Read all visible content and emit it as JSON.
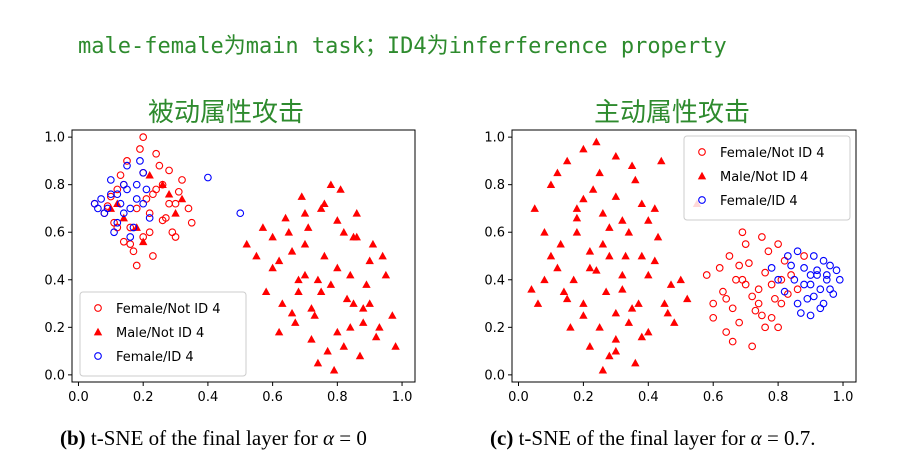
{
  "header": {
    "title": "male-female为main task；ID4为inferference property"
  },
  "panels": [
    {
      "subtitle": "被动属性攻击",
      "caption_prefix": "(b)",
      "caption_text": " t-SNE of the final layer for ",
      "caption_symbol": "α",
      "caption_value": " = 0"
    },
    {
      "subtitle": "主动属性攻击",
      "caption_prefix": "(c)",
      "caption_text": " t-SNE of the final layer for ",
      "caption_symbol": "α",
      "caption_value": " = 0.7."
    }
  ],
  "chart_data": [
    {
      "type": "scatter",
      "xlim": [
        -0.02,
        1.04
      ],
      "ylim": [
        -0.03,
        1.03
      ],
      "x_ticks": [
        "0.0",
        "0.2",
        "0.4",
        "0.6",
        "0.8",
        "1.0"
      ],
      "y_ticks": [
        "0.0",
        "0.2",
        "0.4",
        "0.6",
        "0.8",
        "1.0"
      ],
      "legend_position": "bottom-left",
      "series": [
        {
          "name": "Female/Not ID 4",
          "marker": "circle-open",
          "color": "#ff0000",
          "x": [
            0.05,
            0.08,
            0.1,
            0.12,
            0.14,
            0.16,
            0.18,
            0.2,
            0.22,
            0.24,
            0.26,
            0.28,
            0.3,
            0.32,
            0.34,
            0.15,
            0.19,
            0.23,
            0.27,
            0.21,
            0.25,
            0.17,
            0.13,
            0.29,
            0.11,
            0.31,
            0.09,
            0.2,
            0.24,
            0.18,
            0.22,
            0.26,
            0.16,
            0.28,
            0.14,
            0.3,
            0.12,
            0.35,
            0.2,
            0.23
          ],
          "y": [
            0.72,
            0.68,
            0.75,
            0.62,
            0.8,
            0.55,
            0.7,
            0.85,
            0.6,
            0.78,
            0.65,
            0.72,
            0.58,
            0.82,
            0.7,
            0.9,
            0.95,
            0.5,
            0.66,
            0.74,
            0.88,
            0.52,
            0.84,
            0.6,
            0.64,
            0.77,
            0.71,
            1.0,
            0.93,
            0.46,
            0.68,
            0.8,
            0.62,
            0.86,
            0.56,
            0.72,
            0.78,
            0.64,
            0.58,
            0.76
          ]
        },
        {
          "name": "Male/Not ID 4",
          "marker": "triangle-filled",
          "color": "#ff0000",
          "x": [
            0.55,
            0.6,
            0.65,
            0.7,
            0.75,
            0.8,
            0.85,
            0.9,
            0.95,
            0.58,
            0.63,
            0.68,
            0.73,
            0.78,
            0.83,
            0.88,
            0.93,
            0.62,
            0.67,
            0.72,
            0.77,
            0.82,
            0.87,
            0.92,
            0.97,
            0.66,
            0.71,
            0.76,
            0.81,
            0.86,
            0.91,
            0.7,
            0.75,
            0.8,
            0.85,
            0.74,
            0.79,
            0.84,
            0.64,
            0.69,
            0.89,
            0.94,
            0.6,
            0.52,
            0.57,
            0.78,
            0.72,
            0.82,
            0.68,
            0.88,
            0.98,
            0.62,
            0.76,
            0.84,
            0.9,
            0.7,
            0.8,
            0.66,
            0.74,
            0.86,
            0.1,
            0.18,
            0.26,
            0.32,
            0.14,
            0.22,
            0.3,
            0.2,
            0.28,
            0.12
          ],
          "y": [
            0.5,
            0.45,
            0.6,
            0.55,
            0.7,
            0.65,
            0.58,
            0.48,
            0.42,
            0.35,
            0.3,
            0.4,
            0.25,
            0.38,
            0.32,
            0.28,
            0.2,
            0.18,
            0.22,
            0.15,
            0.1,
            0.12,
            0.08,
            0.16,
            0.25,
            0.52,
            0.62,
            0.72,
            0.78,
            0.68,
            0.55,
            0.42,
            0.35,
            0.45,
            0.3,
            0.05,
            0.02,
            0.2,
            0.66,
            0.75,
            0.38,
            0.5,
            0.58,
            0.55,
            0.62,
            0.8,
            0.28,
            0.6,
            0.35,
            0.22,
            0.12,
            0.48,
            0.5,
            0.42,
            0.3,
            0.68,
            0.18,
            0.26,
            0.4,
            0.58,
            0.7,
            0.62,
            0.8,
            0.74,
            0.66,
            0.84,
            0.68,
            0.56,
            0.76,
            0.72
          ]
        },
        {
          "name": "Female/ID 4",
          "marker": "circle-open",
          "color": "#0000ff",
          "x": [
            0.05,
            0.08,
            0.1,
            0.12,
            0.14,
            0.16,
            0.18,
            0.2,
            0.22,
            0.11,
            0.13,
            0.15,
            0.09,
            0.17,
            0.19,
            0.07,
            0.1,
            0.14,
            0.16,
            0.12,
            0.2,
            0.18,
            0.06,
            0.21,
            0.15,
            0.4,
            0.5
          ],
          "y": [
            0.72,
            0.68,
            0.76,
            0.64,
            0.8,
            0.7,
            0.74,
            0.85,
            0.66,
            0.6,
            0.72,
            0.78,
            0.7,
            0.62,
            0.9,
            0.74,
            0.82,
            0.68,
            0.58,
            0.76,
            0.72,
            0.8,
            0.7,
            0.78,
            0.88,
            0.83,
            0.68
          ]
        }
      ]
    },
    {
      "type": "scatter",
      "xlim": [
        -0.02,
        1.04
      ],
      "ylim": [
        -0.03,
        1.03
      ],
      "x_ticks": [
        "0.0",
        "0.2",
        "0.4",
        "0.6",
        "0.8",
        "1.0"
      ],
      "y_ticks": [
        "0.0",
        "0.2",
        "0.4",
        "0.6",
        "0.8",
        "1.0"
      ],
      "legend_position": "top-right",
      "series": [
        {
          "name": "Female/Not ID 4",
          "marker": "circle-open",
          "color": "#ff0000",
          "x": [
            0.6,
            0.63,
            0.66,
            0.69,
            0.72,
            0.75,
            0.78,
            0.81,
            0.84,
            0.62,
            0.65,
            0.68,
            0.71,
            0.74,
            0.77,
            0.8,
            0.83,
            0.64,
            0.67,
            0.7,
            0.73,
            0.76,
            0.79,
            0.82,
            0.86,
            0.66,
            0.69,
            0.72,
            0.75,
            0.78,
            0.81,
            0.7,
            0.74,
            0.58,
            0.88,
            0.6,
            0.64,
            0.76,
            0.8,
            0.68
          ],
          "y": [
            0.3,
            0.35,
            0.28,
            0.4,
            0.33,
            0.25,
            0.38,
            0.3,
            0.42,
            0.45,
            0.5,
            0.22,
            0.47,
            0.36,
            0.52,
            0.2,
            0.34,
            0.18,
            0.4,
            0.55,
            0.27,
            0.43,
            0.32,
            0.48,
            0.36,
            0.14,
            0.6,
            0.12,
            0.58,
            0.24,
            0.4,
            0.38,
            0.3,
            0.42,
            0.5,
            0.24,
            0.32,
            0.2,
            0.55,
            0.46
          ]
        },
        {
          "name": "Male/Not ID 4",
          "marker": "triangle-filled",
          "color": "#ff0000",
          "x": [
            0.05,
            0.1,
            0.15,
            0.2,
            0.25,
            0.3,
            0.35,
            0.4,
            0.08,
            0.13,
            0.18,
            0.23,
            0.28,
            0.33,
            0.38,
            0.43,
            0.12,
            0.17,
            0.22,
            0.27,
            0.32,
            0.37,
            0.42,
            0.47,
            0.2,
            0.25,
            0.3,
            0.35,
            0.15,
            0.22,
            0.28,
            0.34,
            0.4,
            0.45,
            0.5,
            0.18,
            0.26,
            0.32,
            0.38,
            0.24,
            0.3,
            0.36,
            0.42,
            0.14,
            0.2,
            0.26,
            0.3,
            0.36,
            0.08,
            0.06,
            0.12,
            0.16,
            0.22,
            0.28,
            0.34,
            0.4,
            0.46,
            0.52,
            0.2,
            0.26,
            0.32,
            0.44,
            0.48,
            0.1,
            0.18,
            0.24,
            0.3,
            0.38,
            0.04,
            0.55
          ],
          "y": [
            0.7,
            0.8,
            0.9,
            0.95,
            0.85,
            0.75,
            0.88,
            0.65,
            0.6,
            0.55,
            0.7,
            0.78,
            0.62,
            0.5,
            0.72,
            0.58,
            0.45,
            0.4,
            0.52,
            0.35,
            0.42,
            0.3,
            0.48,
            0.38,
            0.25,
            0.2,
            0.15,
            0.28,
            0.32,
            0.12,
            0.08,
            0.22,
            0.18,
            0.3,
            0.4,
            0.6,
            0.55,
            0.65,
            0.5,
            0.98,
            0.92,
            0.82,
            0.7,
            0.35,
            0.3,
            0.02,
            0.1,
            0.05,
            0.4,
            0.3,
            0.85,
            0.2,
            0.45,
            0.5,
            0.6,
            0.42,
            0.26,
            0.32,
            0.74,
            0.68,
            0.36,
            0.9,
            0.22,
            0.5,
            0.66,
            0.44,
            0.26,
            0.16,
            0.36,
            0.72
          ]
        },
        {
          "name": "Female/ID 4",
          "marker": "circle-open",
          "color": "#0000ff",
          "x": [
            0.82,
            0.85,
            0.88,
            0.9,
            0.92,
            0.94,
            0.96,
            0.98,
            0.86,
            0.89,
            0.91,
            0.93,
            0.95,
            0.97,
            0.84,
            0.87,
            0.9,
            0.93,
            0.96,
            0.88,
            0.91,
            0.94,
            0.8,
            0.83,
            0.86,
            0.9,
            0.95,
            0.92,
            0.78,
            0.99
          ],
          "y": [
            0.35,
            0.4,
            0.45,
            0.38,
            0.42,
            0.48,
            0.36,
            0.44,
            0.3,
            0.32,
            0.5,
            0.28,
            0.4,
            0.34,
            0.46,
            0.26,
            0.42,
            0.36,
            0.46,
            0.38,
            0.33,
            0.3,
            0.4,
            0.5,
            0.52,
            0.25,
            0.42,
            0.44,
            0.45,
            0.4
          ]
        }
      ]
    }
  ]
}
